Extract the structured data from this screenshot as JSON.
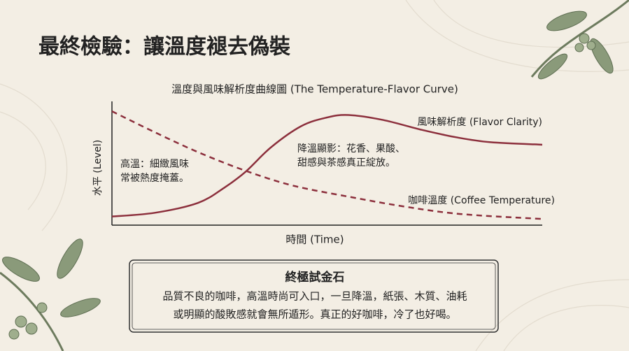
{
  "title": "最終檢驗：讓溫度褪去偽裝",
  "chart_data": {
    "type": "line",
    "title": "溫度與風味解析度曲線圖 (The Temperature-Flavor Curve)",
    "x_label": "時間 (Time)",
    "y_label": "水平 (Level)",
    "xlim": [
      0,
      100
    ],
    "ylim": [
      0,
      100
    ],
    "series": [
      {
        "name": "風味解析度 (Flavor Clarity)",
        "color": "#8c2f3c",
        "dashed": false,
        "x": [
          0,
          10,
          20,
          26,
          31,
          37,
          44,
          50,
          55,
          63,
          72,
          80,
          88,
          100
        ],
        "values": [
          7,
          10,
          18,
          30,
          43,
          63,
          80,
          87,
          89,
          85,
          77,
          71,
          67,
          65
        ]
      },
      {
        "name": "咖啡溫度 (Coffee Temperature)",
        "color": "#8c2f3c",
        "dashed": true,
        "x": [
          0,
          10,
          20,
          31,
          42,
          55,
          68,
          81,
          100
        ],
        "values": [
          92,
          75,
          59,
          44,
          32,
          23,
          15,
          9,
          5
        ]
      }
    ],
    "annotations": [
      [
        "高溫：細緻風味",
        "常被熱度掩蓋。"
      ],
      [
        "降溫顯影：花香、果酸、",
        "甜感與茶感真正綻放。"
      ]
    ]
  },
  "callout": {
    "heading": "終極試金石",
    "lines": [
      "品質不良的咖啡，高溫時尚可入口，一旦降溫，紙張、木質、油耗",
      "或明顯的酸敗感就會無所遁形。真正的好咖啡，冷了也好喝。"
    ]
  }
}
